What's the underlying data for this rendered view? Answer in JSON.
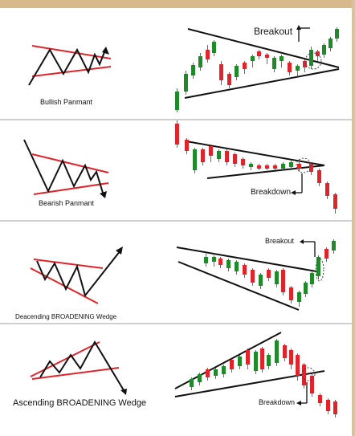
{
  "patterns": [
    {
      "label": "Bullish Panmant",
      "annotation": "Breakout"
    },
    {
      "label": "Bearish Panmant",
      "annotation": "Breakdown"
    },
    {
      "label": "Deacending BROADENING Wedge",
      "annotation": "Breakout"
    },
    {
      "label": "Ascending BROADENING Wedge",
      "annotation": "Breakdown"
    }
  ],
  "colors": {
    "bull": "#1f8a2a",
    "bear": "#e0242b",
    "trend": "#e0242b",
    "line": "#111111",
    "background": "#fbfaf8"
  }
}
